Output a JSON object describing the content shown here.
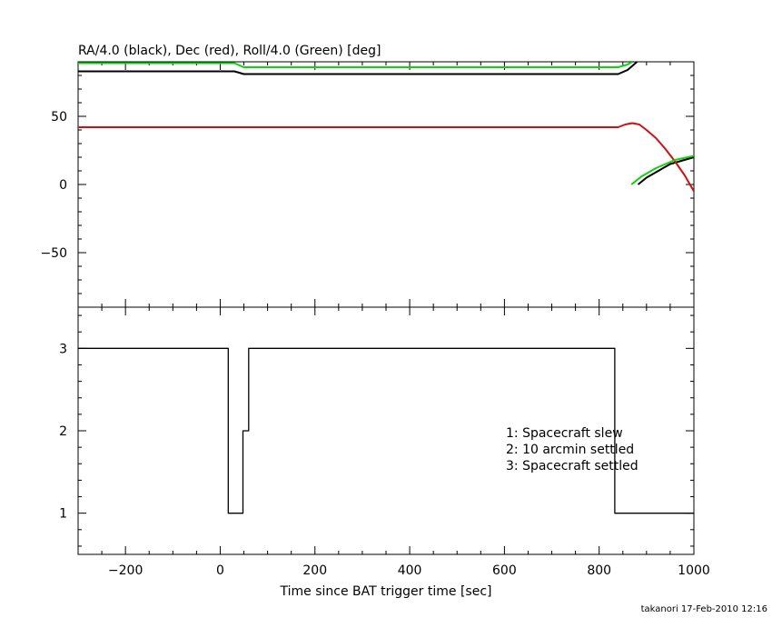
{
  "chart_data": [
    {
      "type": "line",
      "title": "RA/4.0 (black), Dec (red), Roll/4.0 (Green) [deg]",
      "xlim": [
        -300,
        1000
      ],
      "ylim": [
        -90,
        90
      ],
      "y_ticks": [
        -50,
        0,
        50
      ],
      "grid": false,
      "series": [
        {
          "color": "#000000",
          "points": [
            [
              -300,
              83
            ],
            [
              30,
              83
            ],
            [
              50,
              81
            ],
            [
              840,
              81
            ],
            [
              860,
              84
            ],
            [
              880,
              90
            ]
          ],
          "points2": [
            [
              882,
              0
            ],
            [
              900,
              5
            ],
            [
              950,
              15
            ],
            [
              1000,
              20
            ]
          ]
        },
        {
          "color": "#d01010",
          "points": [
            [
              -300,
              42
            ],
            [
              840,
              42
            ],
            [
              855,
              44
            ],
            [
              870,
              45
            ],
            [
              885,
              44
            ],
            [
              900,
              40
            ],
            [
              920,
              34
            ],
            [
              940,
              26
            ],
            [
              960,
              17
            ],
            [
              980,
              7
            ],
            [
              1000,
              -5
            ]
          ]
        },
        {
          "color": "#10d010",
          "points": [
            [
              -300,
              89
            ],
            [
              30,
              89
            ],
            [
              50,
              86
            ],
            [
              840,
              86
            ],
            [
              860,
              88
            ],
            [
              870,
              90
            ]
          ],
          "points2": [
            [
              868,
              0
            ],
            [
              890,
              6
            ],
            [
              920,
              12
            ],
            [
              960,
              18
            ],
            [
              1000,
              21
            ]
          ]
        }
      ]
    },
    {
      "type": "line",
      "xlim": [
        -300,
        1000
      ],
      "ylim": [
        0.5,
        3.5
      ],
      "y_ticks": [
        1,
        2,
        3
      ],
      "x_ticks": [
        -200,
        0,
        200,
        400,
        600,
        800,
        1000
      ],
      "xlabel": "Time since BAT trigger time [sec]",
      "grid": false,
      "series": [
        {
          "color": "#000000",
          "step_points": [
            [
              -300,
              3
            ],
            [
              17,
              3
            ],
            [
              17,
              1
            ],
            [
              48,
              1
            ],
            [
              48,
              2
            ],
            [
              60,
              2
            ],
            [
              60,
              3
            ],
            [
              833,
              3
            ],
            [
              833,
              1
            ],
            [
              1000,
              1
            ]
          ]
        }
      ],
      "annotations": [
        "1: Spacecraft slew",
        "2: 10 arcmin settled",
        "3: Spacecraft settled"
      ]
    }
  ],
  "footer": "takanori 17-Feb-2010 12:16"
}
